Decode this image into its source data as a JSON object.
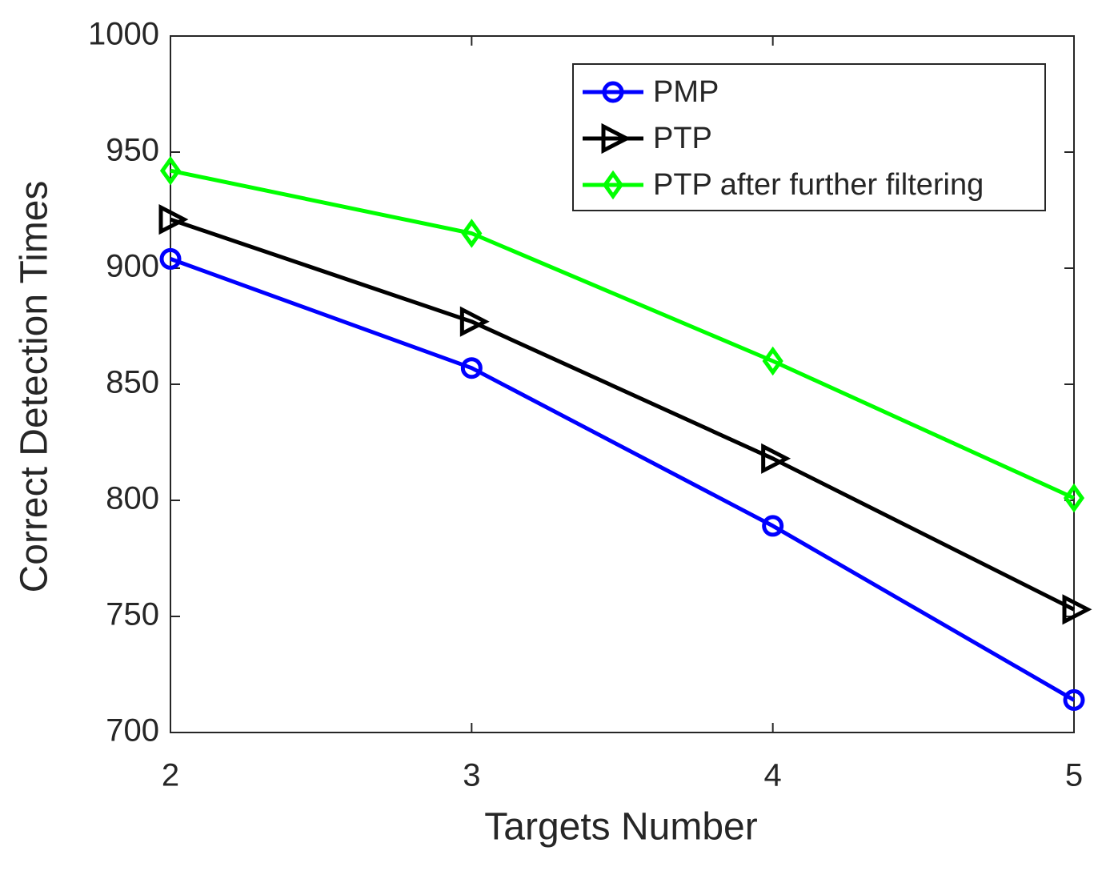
{
  "chart_data": {
    "type": "line",
    "x_label": "Targets Number",
    "y_label": "Correct Detection Times",
    "x": [
      2,
      3,
      4,
      5
    ],
    "xlim": [
      2,
      5
    ],
    "xticks": [
      2,
      3,
      4,
      5
    ],
    "ylim": [
      700,
      1000
    ],
    "yticks": [
      700,
      750,
      800,
      850,
      900,
      950,
      1000
    ],
    "grid": false,
    "legend": "upper right",
    "series": [
      {
        "name": "PMP",
        "color": "#0000ff",
        "marker": "circle",
        "values": [
          904,
          857,
          789,
          714
        ]
      },
      {
        "name": "PTP",
        "color": "#000000",
        "marker": "triangle-right",
        "values": [
          921,
          877,
          818,
          753
        ]
      },
      {
        "name": "PTP after further filtering",
        "color": "#00ff00",
        "marker": "diamond",
        "values": [
          942,
          915,
          860,
          801
        ]
      }
    ]
  }
}
